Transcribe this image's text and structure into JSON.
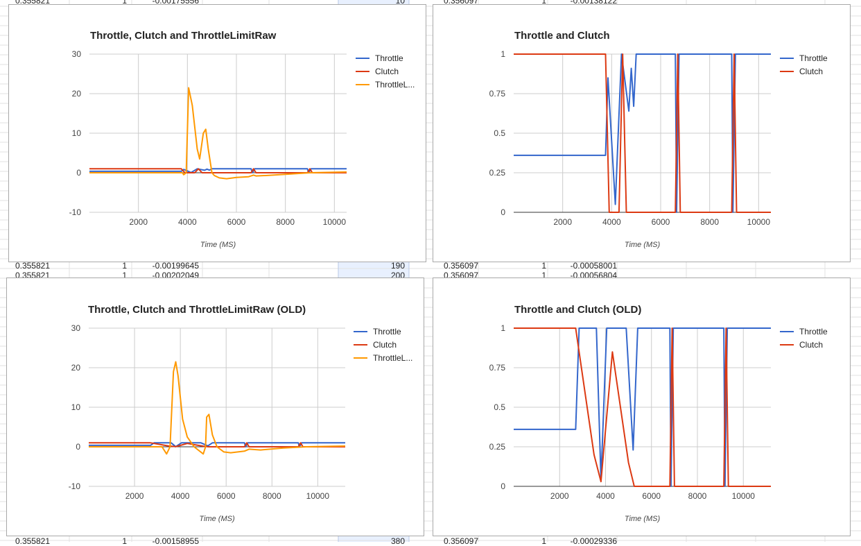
{
  "sheet": {
    "rows": [
      {
        "y": -6,
        "cells": [
          "0.355821",
          "1",
          "-0.00175556",
          "10",
          "0.356097",
          "1",
          "-0.00138122"
        ]
      },
      {
        "y": 376,
        "cells": [
          "0.355821",
          "1",
          "-0.00199645",
          "190",
          "0.356097",
          "1",
          "-0.00058001"
        ]
      },
      {
        "y": 390,
        "cells": [
          "0.355821",
          "1",
          "-0.00202049",
          "200",
          "0.356097",
          "1",
          "-0.00056804"
        ]
      },
      {
        "y": 773,
        "cells": [
          "0.355821",
          "1",
          "-0.00158955",
          "380",
          "0.356097",
          "1",
          "-0.00029336"
        ]
      }
    ]
  },
  "colors": {
    "throttle": "#3366cc",
    "clutch": "#dc3912",
    "throttle_limit_raw": "#ff9900"
  },
  "chart_data": [
    {
      "type": "line",
      "title": "Throttle, Clutch and ThrottleLimitRaw",
      "xlabel": "Time (MS)",
      "ylabel": "",
      "xlim": [
        0,
        10500
      ],
      "ylim": [
        -10,
        30
      ],
      "xticks": [
        2000,
        4000,
        6000,
        8000,
        10000
      ],
      "yticks": [
        -10,
        0,
        10,
        20,
        30
      ],
      "ytick_labels": [
        "-10",
        "0",
        "10",
        "20",
        "30"
      ],
      "legend": "right",
      "legend_labels": [
        "Throttle",
        "Clutch",
        "ThrottleL..."
      ],
      "grid": true,
      "series": [
        {
          "name": "Throttle",
          "color": "#3366cc",
          "points": [
            [
              0,
              0.36
            ],
            [
              3750,
              0.36
            ],
            [
              3850,
              0.85
            ],
            [
              4150,
              0.05
            ],
            [
              4400,
              1
            ],
            [
              4700,
              0.64
            ],
            [
              4800,
              0.91
            ],
            [
              4900,
              0.67
            ],
            [
              5000,
              1
            ],
            [
              6600,
              1
            ],
            [
              6650,
              0
            ],
            [
              6750,
              1
            ],
            [
              8900,
              1
            ],
            [
              8950,
              0
            ],
            [
              9050,
              1
            ],
            [
              10500,
              1
            ]
          ]
        },
        {
          "name": "Clutch",
          "color": "#dc3912",
          "points": [
            [
              0,
              1
            ],
            [
              3750,
              1
            ],
            [
              3900,
              0
            ],
            [
              4300,
              0
            ],
            [
              4450,
              1
            ],
            [
              4600,
              0
            ],
            [
              6600,
              0
            ],
            [
              6700,
              1
            ],
            [
              6800,
              0
            ],
            [
              8900,
              0
            ],
            [
              9000,
              1
            ],
            [
              9100,
              0
            ],
            [
              10500,
              0
            ]
          ]
        },
        {
          "name": "ThrottleL...",
          "color": "#ff9900",
          "points": [
            [
              0,
              0
            ],
            [
              3800,
              0
            ],
            [
              3850,
              -0.5
            ],
            [
              3950,
              0
            ],
            [
              4050,
              21.5
            ],
            [
              4200,
              17
            ],
            [
              4400,
              6
            ],
            [
              4500,
              3.5
            ],
            [
              4650,
              10
            ],
            [
              4750,
              11
            ],
            [
              4850,
              6
            ],
            [
              5000,
              0
            ],
            [
              5100,
              -0.7
            ],
            [
              5300,
              -1.3
            ],
            [
              5600,
              -1.5
            ],
            [
              6000,
              -1.2
            ],
            [
              6500,
              -1.0
            ],
            [
              6700,
              -0.6
            ],
            [
              6800,
              -0.8
            ],
            [
              7200,
              -0.7
            ],
            [
              8000,
              -0.4
            ],
            [
              9000,
              0
            ],
            [
              10500,
              0.2
            ]
          ]
        }
      ]
    },
    {
      "type": "line",
      "title": "Throttle and Clutch",
      "xlabel": "Time (MS)",
      "ylabel": "",
      "xlim": [
        0,
        10500
      ],
      "ylim": [
        0,
        1
      ],
      "xticks": [
        2000,
        4000,
        6000,
        8000,
        10000
      ],
      "yticks": [
        0,
        0.25,
        0.5,
        0.75,
        1
      ],
      "ytick_labels": [
        "0",
        "0.25",
        "0.5",
        "0.75",
        "1"
      ],
      "legend": "right",
      "legend_labels": [
        "Throttle",
        "Clutch"
      ],
      "grid": true,
      "series": [
        {
          "name": "Throttle",
          "color": "#3366cc",
          "points": [
            [
              0,
              0.36
            ],
            [
              3750,
              0.36
            ],
            [
              3850,
              0.85
            ],
            [
              4150,
              0.05
            ],
            [
              4400,
              1
            ],
            [
              4700,
              0.64
            ],
            [
              4800,
              0.91
            ],
            [
              4900,
              0.67
            ],
            [
              5000,
              1
            ],
            [
              6600,
              1
            ],
            [
              6650,
              0
            ],
            [
              6750,
              1
            ],
            [
              8900,
              1
            ],
            [
              8950,
              0
            ],
            [
              9050,
              1
            ],
            [
              10500,
              1
            ]
          ]
        },
        {
          "name": "Clutch",
          "color": "#dc3912",
          "points": [
            [
              0,
              1
            ],
            [
              3750,
              1
            ],
            [
              3900,
              0
            ],
            [
              4300,
              0
            ],
            [
              4450,
              1
            ],
            [
              4600,
              0
            ],
            [
              6600,
              0
            ],
            [
              6700,
              1
            ],
            [
              6800,
              0
            ],
            [
              8900,
              0
            ],
            [
              9000,
              1
            ],
            [
              9100,
              0
            ],
            [
              10500,
              0
            ]
          ]
        }
      ]
    },
    {
      "type": "line",
      "title": "Throttle, Clutch and ThrottleLimitRaw (OLD)",
      "xlabel": "Time (MS)",
      "ylabel": "",
      "xlim": [
        0,
        11200
      ],
      "ylim": [
        -10,
        30
      ],
      "xticks": [
        2000,
        4000,
        6000,
        8000,
        10000
      ],
      "yticks": [
        -10,
        0,
        10,
        20,
        30
      ],
      "ytick_labels": [
        "-10",
        "0",
        "10",
        "20",
        "30"
      ],
      "legend": "right",
      "legend_labels": [
        "Throttle",
        "Clutch",
        "ThrottleL..."
      ],
      "grid": true,
      "series": [
        {
          "name": "Throttle",
          "color": "#3366cc",
          "points": [
            [
              0,
              0.36
            ],
            [
              2700,
              0.36
            ],
            [
              2850,
              1
            ],
            [
              3600,
              1
            ],
            [
              3800,
              0.04
            ],
            [
              4050,
              1
            ],
            [
              4900,
              1
            ],
            [
              5200,
              0.23
            ],
            [
              5400,
              1
            ],
            [
              6800,
              1
            ],
            [
              6850,
              0
            ],
            [
              6950,
              1
            ],
            [
              9150,
              1
            ],
            [
              9200,
              0
            ],
            [
              9300,
              1
            ],
            [
              11200,
              1
            ]
          ]
        },
        {
          "name": "Clutch",
          "color": "#dc3912",
          "points": [
            [
              0,
              1
            ],
            [
              2700,
              1
            ],
            [
              3500,
              0.2
            ],
            [
              3800,
              0.03
            ],
            [
              4300,
              0.85
            ],
            [
              5000,
              0.15
            ],
            [
              5250,
              0
            ],
            [
              6800,
              0
            ],
            [
              6900,
              1
            ],
            [
              7000,
              0
            ],
            [
              9150,
              0
            ],
            [
              9250,
              1
            ],
            [
              9350,
              0
            ],
            [
              11200,
              0
            ]
          ]
        },
        {
          "name": "ThrottleL...",
          "color": "#ff9900",
          "points": [
            [
              0,
              0
            ],
            [
              3200,
              0
            ],
            [
              3400,
              -1.8
            ],
            [
              3550,
              0
            ],
            [
              3700,
              19
            ],
            [
              3800,
              21.5
            ],
            [
              3900,
              18
            ],
            [
              4100,
              7
            ],
            [
              4300,
              2.5
            ],
            [
              4600,
              0
            ],
            [
              5000,
              -1.8
            ],
            [
              5100,
              0
            ],
            [
              5150,
              7.5
            ],
            [
              5250,
              8.2
            ],
            [
              5400,
              3
            ],
            [
              5600,
              0
            ],
            [
              5900,
              -1.3
            ],
            [
              6200,
              -1.5
            ],
            [
              6800,
              -1.1
            ],
            [
              7000,
              -0.6
            ],
            [
              7500,
              -0.8
            ],
            [
              8500,
              -0.3
            ],
            [
              9500,
              0
            ],
            [
              11200,
              0.2
            ]
          ]
        }
      ]
    },
    {
      "type": "line",
      "title": "Throttle and Clutch (OLD)",
      "xlabel": "Time (MS)",
      "ylabel": "",
      "xlim": [
        0,
        11200
      ],
      "ylim": [
        0,
        1
      ],
      "xticks": [
        2000,
        4000,
        6000,
        8000,
        10000
      ],
      "yticks": [
        0,
        0.25,
        0.5,
        0.75,
        1
      ],
      "ytick_labels": [
        "0",
        "0.25",
        "0.5",
        "0.75",
        "1"
      ],
      "legend": "right",
      "legend_labels": [
        "Throttle",
        "Clutch"
      ],
      "grid": true,
      "series": [
        {
          "name": "Throttle",
          "color": "#3366cc",
          "points": [
            [
              0,
              0.36
            ],
            [
              2700,
              0.36
            ],
            [
              2850,
              1
            ],
            [
              3600,
              1
            ],
            [
              3800,
              0.04
            ],
            [
              4050,
              1
            ],
            [
              4900,
              1
            ],
            [
              5200,
              0.23
            ],
            [
              5400,
              1
            ],
            [
              6800,
              1
            ],
            [
              6850,
              0
            ],
            [
              6950,
              1
            ],
            [
              9150,
              1
            ],
            [
              9200,
              0
            ],
            [
              9300,
              1
            ],
            [
              11200,
              1
            ]
          ]
        },
        {
          "name": "Clutch",
          "color": "#dc3912",
          "points": [
            [
              0,
              1
            ],
            [
              2700,
              1
            ],
            [
              3500,
              0.2
            ],
            [
              3800,
              0.03
            ],
            [
              4300,
              0.85
            ],
            [
              5000,
              0.15
            ],
            [
              5250,
              0
            ],
            [
              6800,
              0
            ],
            [
              6900,
              1
            ],
            [
              7000,
              0
            ],
            [
              9150,
              0
            ],
            [
              9250,
              1
            ],
            [
              9350,
              0
            ],
            [
              11200,
              0
            ]
          ]
        }
      ]
    }
  ]
}
